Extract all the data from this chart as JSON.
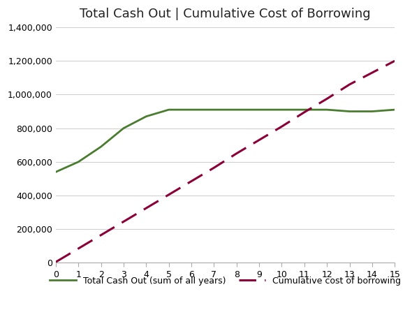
{
  "title": "Total Cash Out | Cumulative Cost of Borrowing",
  "x": [
    0,
    1,
    2,
    3,
    4,
    5,
    6,
    7,
    8,
    9,
    10,
    11,
    12,
    13,
    14,
    15
  ],
  "cash_out": [
    540000,
    600000,
    690000,
    800000,
    870000,
    910000,
    910000,
    910000,
    910000,
    910000,
    910000,
    910000,
    910000,
    900000,
    900000,
    910000
  ],
  "cum_cost": [
    5000,
    85000,
    165000,
    245000,
    325000,
    405000,
    485000,
    565000,
    650000,
    730000,
    810000,
    895000,
    975000,
    1060000,
    1130000,
    1200000
  ],
  "cash_out_color": "#4a7c2f",
  "cum_cost_color": "#8b0038",
  "legend_labels": [
    "Total Cash Out (sum of all years)",
    "Cumulative cost of borrowing"
  ],
  "ylim": [
    0,
    1400000
  ],
  "xlim": [
    0,
    15
  ],
  "yticks": [
    0,
    200000,
    400000,
    600000,
    800000,
    1000000,
    1200000,
    1400000
  ],
  "xticks": [
    0,
    1,
    2,
    3,
    4,
    5,
    6,
    7,
    8,
    9,
    10,
    11,
    12,
    13,
    14,
    15
  ],
  "background_color": "#ffffff",
  "grid_color": "#d0d0d0",
  "title_fontsize": 13,
  "legend_fontsize": 9,
  "tick_fontsize": 9
}
